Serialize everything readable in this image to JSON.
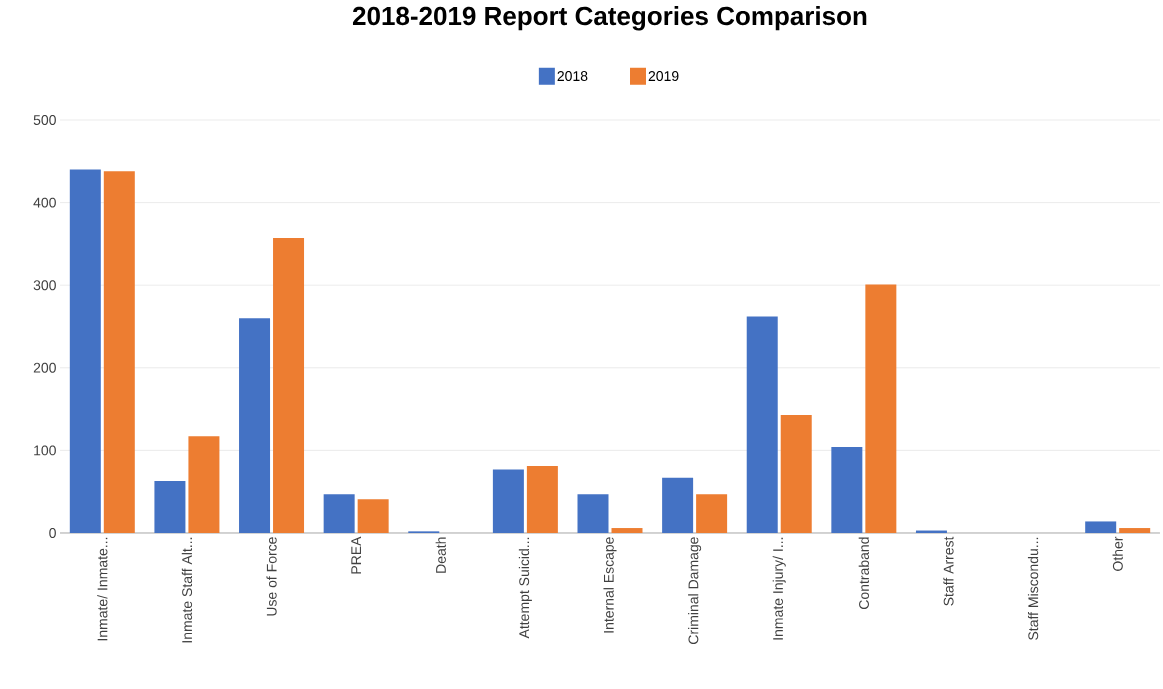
{
  "chart_data": {
    "type": "bar",
    "title": "2018-2019 Report Categories Comparison",
    "categories": [
      "Inmate/ Inmate...",
      "Inmate Staff Alt...",
      "Use of Force",
      "PREA",
      "Death",
      "Attempt Suicid...",
      "Internal Escape",
      "Criminal Damage",
      "Inmate Injury/ I...",
      "Contraband",
      "Staff Arrest",
      "Staff Miscondu...",
      "Other"
    ],
    "series": [
      {
        "name": "2018",
        "color": "#4472c4",
        "values": [
          440,
          63,
          260,
          47,
          2,
          77,
          47,
          67,
          262,
          104,
          3,
          0,
          14
        ]
      },
      {
        "name": "2019",
        "color": "#ed7d31",
        "values": [
          438,
          117,
          357,
          41,
          0,
          81,
          6,
          47,
          143,
          301,
          0,
          0,
          6
        ]
      }
    ],
    "ylim": [
      0,
      500
    ],
    "yticks": [
      0,
      100,
      200,
      300,
      400,
      500
    ],
    "grid": "y",
    "legend": "top"
  }
}
